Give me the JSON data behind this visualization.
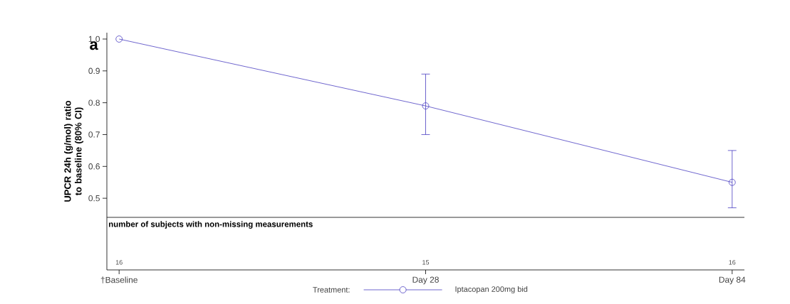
{
  "chart_data": {
    "type": "line",
    "title": "a",
    "ylabel": "UPCR 24h (g/mol) ratio to baseline (80% CI)",
    "legend_title": "Treatment:",
    "categories": [
      "†Baseline",
      "Day 28",
      "Day 84"
    ],
    "ylim": [
      0.275,
      1.02
    ],
    "ref_lines": [
      {
        "axis": "y",
        "value": 0.44,
        "color": "#000000"
      }
    ],
    "yticks": [
      {
        "value": 0.5,
        "label": "0.5"
      },
      {
        "value": 0.6,
        "label": "0.6"
      },
      {
        "value": 0.7,
        "label": "0.7"
      },
      {
        "value": 0.8,
        "label": "0.8"
      },
      {
        "value": 0.9,
        "label": "0.9"
      },
      {
        "value": 1.0,
        "label": "1.0"
      }
    ],
    "series": [
      {
        "name": "Iptacopan 200mg bid",
        "color": "#4a3fc2",
        "values": [
          1.0,
          0.79,
          0.55
        ],
        "errors": [
          null,
          [
            0.7,
            0.89
          ],
          [
            0.47,
            0.65
          ]
        ]
      }
    ],
    "annotations": [
      "number of subjects with non-missing measurements",
      "16",
      "15",
      "16"
    ],
    "marker": "circle",
    "line_style": "solid",
    "legend": "bottom",
    "grid": false
  }
}
